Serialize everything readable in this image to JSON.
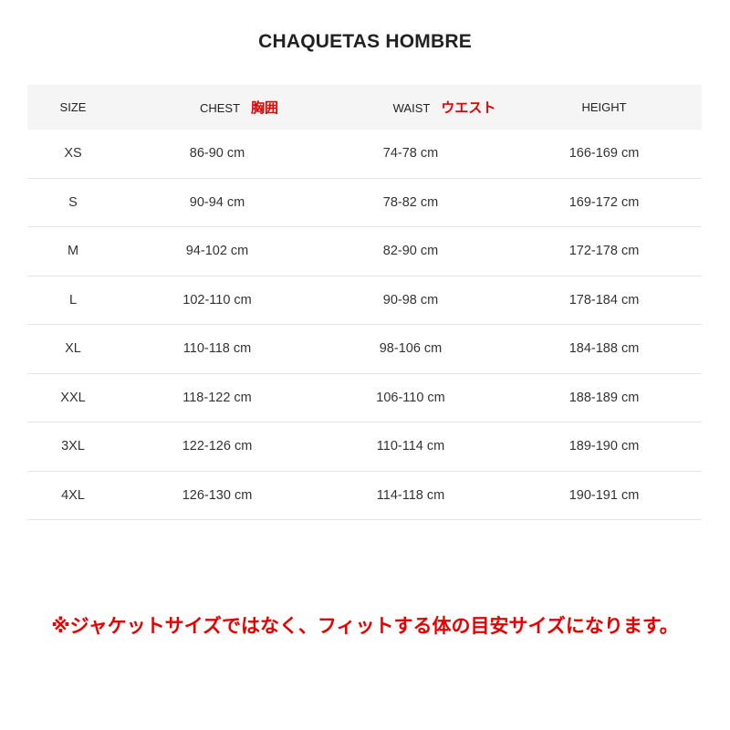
{
  "title": "CHAQUETAS HOMBRE",
  "headers": {
    "size": "SIZE",
    "chest": "CHEST",
    "chest_jp": "胸囲",
    "waist": "WAIST",
    "waist_jp": "ウエスト",
    "height": "HEIGHT"
  },
  "rows": [
    {
      "size": "XS",
      "chest": "86-90 cm",
      "waist": "74-78 cm",
      "height": "166-169 cm"
    },
    {
      "size": "S",
      "chest": "90-94 cm",
      "waist": "78-82 cm",
      "height": "169-172 cm"
    },
    {
      "size": "M",
      "chest": "94-102 cm",
      "waist": "82-90 cm",
      "height": "172-178 cm"
    },
    {
      "size": "L",
      "chest": "102-110 cm",
      "waist": "90-98 cm",
      "height": "178-184 cm"
    },
    {
      "size": "XL",
      "chest": "110-118 cm",
      "waist": "98-106 cm",
      "height": "184-188 cm"
    },
    {
      "size": "XXL",
      "chest": "118-122 cm",
      "waist": "106-110 cm",
      "height": "188-189 cm"
    },
    {
      "size": "3XL",
      "chest": "122-126 cm",
      "waist": "110-114 cm",
      "height": "189-190 cm"
    },
    {
      "size": "4XL",
      "chest": "126-130 cm",
      "waist": "114-118 cm",
      "height": "190-191 cm"
    }
  ],
  "note": "※ジャケットサイズではなく、フィットする体の目安サイズになります。",
  "colors": {
    "accent_red": "#e60000",
    "header_bg": "#f5f5f5"
  }
}
